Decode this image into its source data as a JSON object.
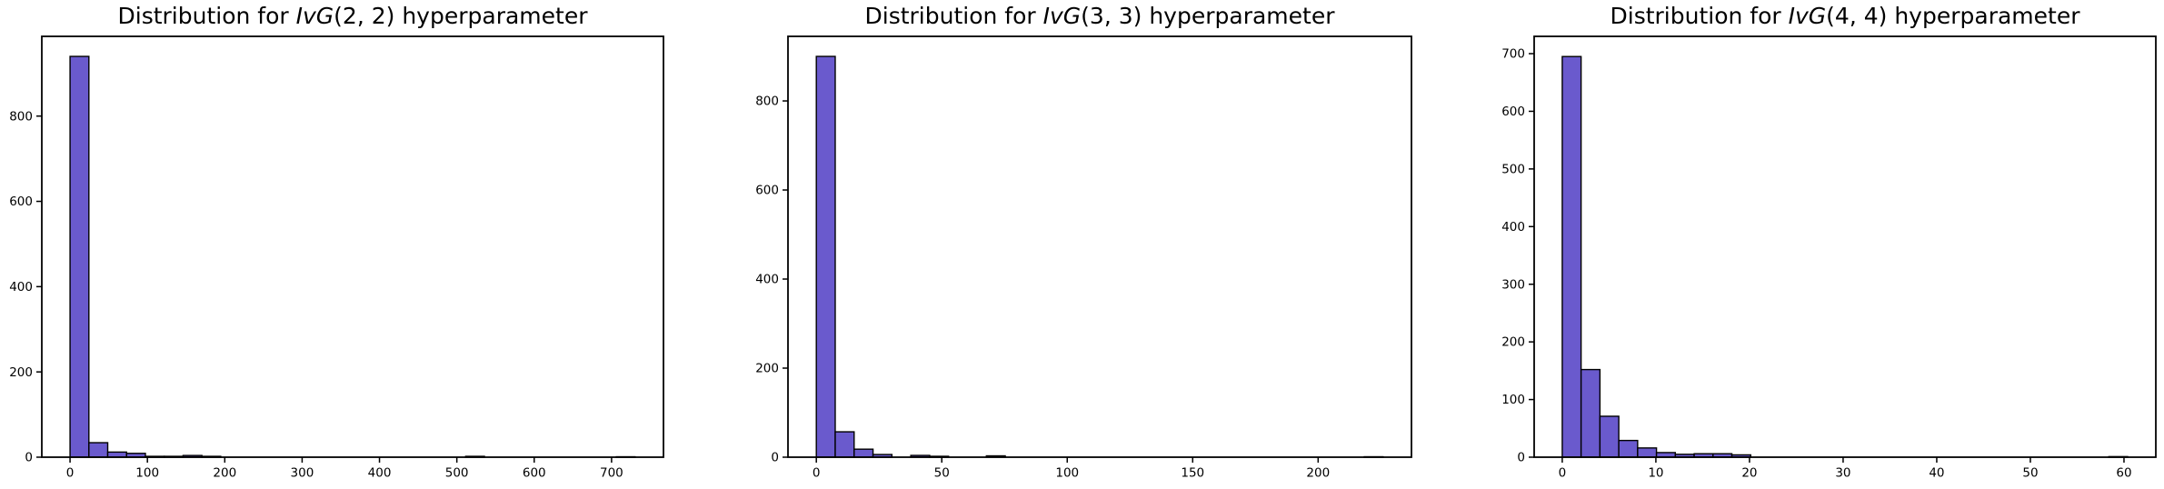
{
  "figure": {
    "background": "#ffffff",
    "text_color": "#000000",
    "axis_color": "#000000"
  },
  "chart_data": [
    {
      "type": "bar",
      "subtype": "histogram",
      "title": "Distribution for IvG(2, 2) hyperparameter",
      "title_prefix": "Distribution for ",
      "title_math": "IvG",
      "title_suffix": "(2, 2) hyperparameter",
      "bar_color": "#6a5acd",
      "bar_edge_color": "#000000",
      "bins": {
        "start": 0,
        "width": 24.35
      },
      "counts": [
        940,
        34,
        12,
        9,
        2,
        2,
        4,
        2,
        0,
        0,
        0,
        0,
        0,
        0,
        0,
        0,
        0,
        0,
        0,
        0,
        0,
        2,
        0,
        0,
        0,
        0,
        0,
        0,
        0,
        1
      ],
      "xlim": [
        -36.5,
        767.1
      ],
      "ylim": [
        0,
        987
      ],
      "xticks": [
        0,
        100,
        200,
        300,
        400,
        500,
        600,
        700
      ],
      "yticks": [
        0,
        200,
        400,
        600,
        800
      ],
      "xlabel": "",
      "ylabel": "",
      "grid": false,
      "legend": null
    },
    {
      "type": "bar",
      "subtype": "histogram",
      "title": "Distribution for IvG(3, 3) hyperparameter",
      "title_prefix": "Distribution for ",
      "title_math": "IvG",
      "title_suffix": "(3, 3) hyperparameter",
      "bar_color": "#6a5acd",
      "bar_edge_color": "#000000",
      "bins": {
        "start": 0,
        "width": 7.53
      },
      "counts": [
        900,
        57,
        18,
        6,
        0,
        4,
        2,
        0,
        0,
        3,
        0,
        0,
        0,
        0,
        0,
        0,
        0,
        0,
        0,
        0,
        0,
        0,
        0,
        0,
        0,
        0,
        0,
        0,
        0,
        1
      ],
      "xlim": [
        -11.3,
        237.2
      ],
      "ylim": [
        0,
        945
      ],
      "xticks": [
        0,
        50,
        100,
        150,
        200
      ],
      "yticks": [
        0,
        200,
        400,
        600,
        800
      ],
      "xlabel": "",
      "ylabel": "",
      "grid": false,
      "legend": null
    },
    {
      "type": "bar",
      "subtype": "histogram",
      "title": "Distribution for IvG(4, 4) hyperparameter",
      "title_prefix": "Distribution for ",
      "title_math": "IvG",
      "title_suffix": "(4, 4) hyperparameter",
      "bar_color": "#6a5acd",
      "bar_edge_color": "#000000",
      "bins": {
        "start": 0,
        "width": 2.013
      },
      "counts": [
        695,
        152,
        71,
        29,
        16,
        8,
        5,
        6,
        6,
        4,
        0,
        0,
        0,
        0,
        0,
        0,
        0,
        0,
        0,
        0,
        0,
        0,
        0,
        0,
        0,
        0,
        0,
        0,
        0,
        1
      ],
      "xlim": [
        -3.0,
        63.4
      ],
      "ylim": [
        0,
        730
      ],
      "xticks": [
        0,
        10,
        20,
        30,
        40,
        50,
        60
      ],
      "yticks": [
        0,
        100,
        200,
        300,
        400,
        500,
        600,
        700
      ],
      "xlabel": "",
      "ylabel": "",
      "grid": false,
      "legend": null
    }
  ]
}
